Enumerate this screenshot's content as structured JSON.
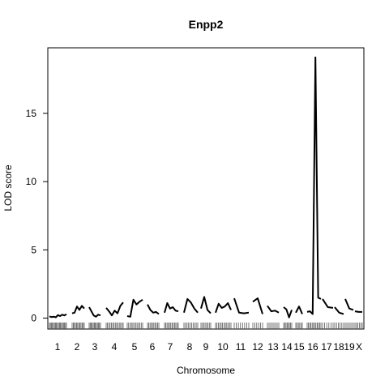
{
  "chart_data": {
    "type": "line",
    "title": "Enpp2",
    "xlabel": "Chromosome",
    "ylabel": "LOD score",
    "ylim": [
      -0.8,
      19.8
    ],
    "y_ticks": [
      0,
      5,
      10,
      15
    ],
    "chromosomes": [
      "1",
      "2",
      "3",
      "4",
      "5",
      "6",
      "7",
      "8",
      "9",
      "10",
      "11",
      "12",
      "13",
      "14",
      "15",
      "16",
      "17",
      "18",
      "19",
      "X"
    ],
    "x_tick_labels": [
      "1",
      "2",
      "3",
      "4",
      "5",
      "6",
      "7",
      "8",
      "9",
      "10",
      "11",
      "12",
      "13",
      "14",
      "15",
      "16",
      "17",
      "18",
      "19",
      "X"
    ],
    "series": [
      {
        "segments": [
          {
            "chr": "1",
            "values": [
              0.12,
              0.08,
              0.1,
              0.06,
              0.22,
              0.15,
              0.25,
              0.2,
              0.28
            ]
          },
          {
            "chr": "2",
            "values": [
              0.35,
              0.4,
              0.85,
              0.6,
              0.9,
              0.7
            ]
          },
          {
            "chr": "3",
            "values": [
              0.8,
              0.5,
              0.2,
              0.1,
              0.25,
              0.2
            ]
          },
          {
            "chr": "4",
            "values": [
              0.75,
              0.5,
              0.2,
              0.55,
              0.35,
              0.9,
              1.15
            ]
          },
          {
            "chr": "5",
            "values": [
              0.15,
              0.1,
              1.35,
              1.0,
              1.2,
              1.35
            ]
          },
          {
            "chr": "6",
            "values": [
              1.0,
              0.6,
              0.4,
              0.45,
              0.3
            ]
          },
          {
            "chr": "7",
            "values": [
              0.4,
              1.1,
              0.7,
              0.8,
              0.55,
              0.5
            ]
          },
          {
            "chr": "8",
            "values": [
              0.4,
              1.4,
              1.15,
              0.7,
              0.4
            ]
          },
          {
            "chr": "9",
            "values": [
              0.7,
              1.55,
              0.6,
              0.35
            ]
          },
          {
            "chr": "10",
            "values": [
              0.4,
              1.05,
              0.75,
              0.85,
              1.1,
              0.6
            ]
          },
          {
            "chr": "11",
            "values": [
              1.45,
              0.4,
              0.35,
              0.4
            ]
          },
          {
            "chr": "12",
            "values": [
              1.2,
              1.45,
              0.3
            ]
          },
          {
            "chr": "13",
            "values": [
              0.9,
              0.5,
              0.55,
              0.4
            ]
          },
          {
            "chr": "14",
            "values": [
              0.8,
              0.65,
              0.05,
              0.6
            ]
          },
          {
            "chr": "15",
            "values": [
              0.4,
              0.85,
              0.3
            ]
          },
          {
            "chr": "16",
            "values": [
              0.45,
              0.5,
              0.3,
              19.1,
              1.5,
              1.4
            ]
          },
          {
            "chr": "17",
            "values": [
              1.4,
              0.8,
              0.75
            ]
          },
          {
            "chr": "18",
            "values": [
              0.8,
              0.4,
              0.3
            ]
          },
          {
            "chr": "19",
            "values": [
              1.4,
              0.7,
              0.6
            ]
          },
          {
            "chr": "X",
            "values": [
              0.5,
              0.45,
              0.45
            ]
          }
        ]
      }
    ],
    "grid": false,
    "legend": "none"
  }
}
